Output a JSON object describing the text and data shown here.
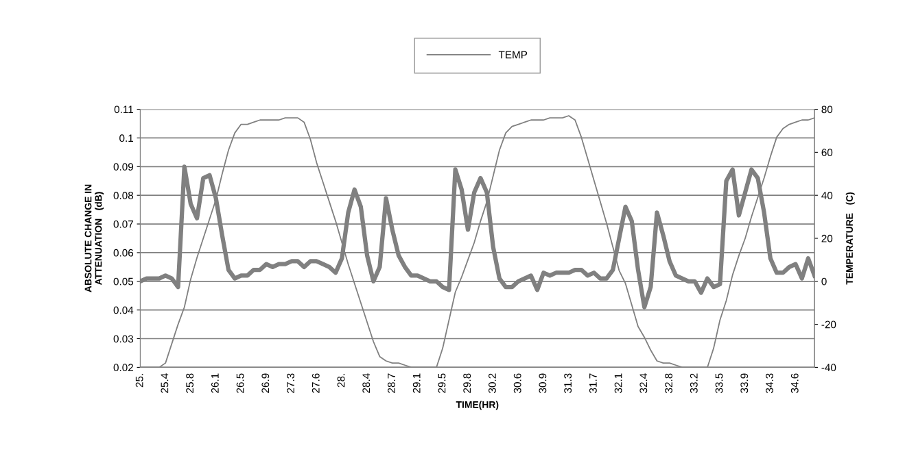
{
  "chart_data": {
    "type": "line",
    "xlabel": "TIME(HR)",
    "ylabel": "ABSOLUTE CHANGE IN\nATTENUATION   (dB)",
    "y2label": "TEMPERATURE   (C)",
    "categories": [
      "25.",
      null,
      null,
      null,
      "25.4",
      null,
      null,
      null,
      "25.8",
      null,
      null,
      null,
      "26.1",
      null,
      null,
      null,
      "26.5",
      null,
      null,
      null,
      "26.9",
      null,
      null,
      null,
      "27.3",
      null,
      null,
      null,
      "27.6",
      null,
      null,
      null,
      "28.",
      null,
      null,
      null,
      "28.4",
      null,
      null,
      null,
      "28.7",
      null,
      null,
      null,
      "29.1",
      null,
      null,
      null,
      "29.5",
      null,
      null,
      null,
      "29.8",
      null,
      null,
      null,
      "30.2",
      null,
      null,
      null,
      "30.6",
      null,
      null,
      null,
      "30.9",
      null,
      null,
      null,
      "31.3",
      null,
      null,
      null,
      "31.7",
      null,
      null,
      null,
      "32.1",
      null,
      null,
      null,
      "32.4",
      null,
      null,
      null,
      "32.8",
      null,
      null,
      null,
      "33.2",
      null,
      null,
      null,
      "33.5",
      null,
      null,
      null,
      "33.9",
      null,
      null,
      null,
      "34.3",
      null,
      null,
      null,
      "34.6",
      null,
      null,
      null
    ],
    "series": [
      {
        "color": "#808080",
        "values": [
          0.05,
          0.051,
          0.051,
          0.051,
          0.052,
          0.051,
          0.048,
          0.09,
          0.077,
          0.072,
          0.086,
          0.087,
          0.079,
          0.066,
          0.054,
          0.051,
          0.052,
          0.052,
          0.054,
          0.054,
          0.056,
          0.055,
          0.056,
          0.056,
          0.057,
          0.057,
          0.055,
          0.057,
          0.057,
          0.056,
          0.055,
          0.053,
          0.058,
          0.074,
          0.082,
          0.076,
          0.059,
          0.05,
          0.055,
          0.079,
          0.068,
          0.059,
          0.055,
          0.052,
          0.052,
          0.051,
          0.05,
          0.05,
          0.048,
          0.047,
          0.089,
          0.082,
          0.068,
          0.081,
          0.086,
          0.081,
          0.062,
          0.051,
          0.048,
          0.048,
          0.05,
          0.051,
          0.052,
          0.047,
          0.053,
          0.052,
          0.053,
          0.053,
          0.053,
          0.054,
          0.054,
          0.052,
          0.053,
          0.051,
          0.051,
          0.054,
          0.065,
          0.076,
          0.071,
          0.054,
          0.041,
          0.048,
          0.074,
          0.066,
          0.057,
          0.052,
          0.051,
          0.05,
          0.05,
          0.046,
          0.051,
          0.048,
          0.049,
          0.085,
          0.089,
          0.073,
          0.081,
          0.089,
          0.086,
          0.074,
          0.058,
          0.053,
          0.053,
          0.055,
          0.056,
          0.051,
          0.058,
          0.052
        ]
      },
      {
        "name": "TEMP",
        "color": "#808080",
        "axis": "y2",
        "values": [
          -40,
          -40,
          -40,
          -40,
          -38,
          -29,
          -20,
          -12,
          1,
          11,
          20,
          29,
          38,
          50,
          61,
          69,
          73,
          73,
          74,
          75,
          75,
          75,
          75,
          76,
          76,
          76,
          74,
          66,
          55,
          46,
          37,
          28,
          18,
          8,
          -1,
          -10,
          -19,
          -28,
          -35,
          -37,
          -38,
          -38,
          -39,
          -40,
          -40,
          -40,
          -40,
          -40,
          -31,
          -18,
          -5,
          2,
          10,
          18,
          28,
          37,
          49,
          61,
          69,
          72,
          73,
          74,
          75,
          75,
          75,
          76,
          76,
          76,
          77,
          75,
          67,
          57,
          47,
          37,
          27,
          16,
          5,
          -1,
          -11,
          -21,
          -26,
          -32,
          -37,
          -38,
          -38,
          -39,
          -40,
          -40,
          -40,
          -40,
          -40,
          -31,
          -18,
          -9,
          3,
          12,
          20,
          30,
          39,
          48,
          58,
          67,
          71,
          73,
          74,
          75,
          75,
          76
        ]
      }
    ],
    "ylim": [
      0.02,
      0.11
    ],
    "yticks": [
      0.02,
      0.03,
      0.04,
      0.05,
      0.06,
      0.07,
      0.08,
      0.09,
      0.1,
      0.11
    ],
    "y2lim": [
      -40,
      80
    ],
    "y2ticks": [
      -40,
      -20,
      0,
      20,
      40,
      60,
      80
    ],
    "grid": "y",
    "legend": "top",
    "marker": "none",
    "line_style": "solid"
  }
}
